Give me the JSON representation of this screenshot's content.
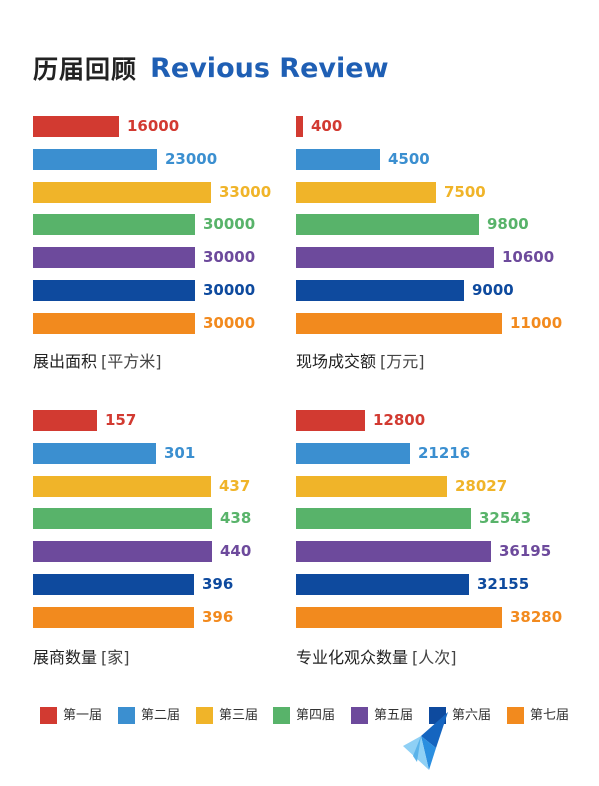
{
  "header": {
    "title_zh": "历届回顾",
    "title_en": "Revious Review"
  },
  "colors": [
    "#d23a31",
    "#3b8fd0",
    "#f0b429",
    "#58b36a",
    "#6d4a9c",
    "#0e4a9e",
    "#f28a1e"
  ],
  "chart_data": [
    {
      "type": "bar",
      "orientation": "horizontal",
      "label": "展出面积",
      "unit": "[平方米]",
      "categories": [
        "第一届",
        "第二届",
        "第三届",
        "第四届",
        "第五届",
        "第六届",
        "第七届"
      ],
      "values": [
        "16000",
        "23000",
        "33000",
        "30000",
        "30000",
        "30000",
        "30000"
      ],
      "xlim": [
        0,
        40000
      ]
    },
    {
      "type": "bar",
      "orientation": "horizontal",
      "label": "现场成交额",
      "unit": "[万元]",
      "categories": [
        "第一届",
        "第二届",
        "第三届",
        "第四届",
        "第五届",
        "第六届",
        "第七届"
      ],
      "values": [
        "400",
        "4500",
        "7500",
        "9800",
        "10600",
        "9000",
        "11000"
      ],
      "xlim": [
        0,
        12500
      ]
    },
    {
      "type": "bar",
      "orientation": "horizontal",
      "label": "展商数量",
      "unit": "[家]",
      "categories": [
        "第一届",
        "第二届",
        "第三届",
        "第四届",
        "第五届",
        "第六届",
        "第七届"
      ],
      "values": [
        "157",
        "301",
        "437",
        "438",
        "440",
        "396",
        "396"
      ],
      "xlim": [
        0,
        530
      ]
    },
    {
      "type": "bar",
      "orientation": "horizontal",
      "label": "专业化观众数量",
      "unit": "[人次]",
      "categories": [
        "第一届",
        "第二届",
        "第三届",
        "第四届",
        "第五届",
        "第六届",
        "第七届"
      ],
      "values": [
        "12800",
        "21216",
        "28027",
        "32543",
        "36195",
        "32155",
        "38280"
      ],
      "xlim": [
        0,
        43500
      ]
    }
  ],
  "legend": [
    "第一届",
    "第二届",
    "第三届",
    "第四届",
    "第五届",
    "第六届",
    "第七届"
  ],
  "logo": {
    "icon": "origami-bird-logo"
  }
}
